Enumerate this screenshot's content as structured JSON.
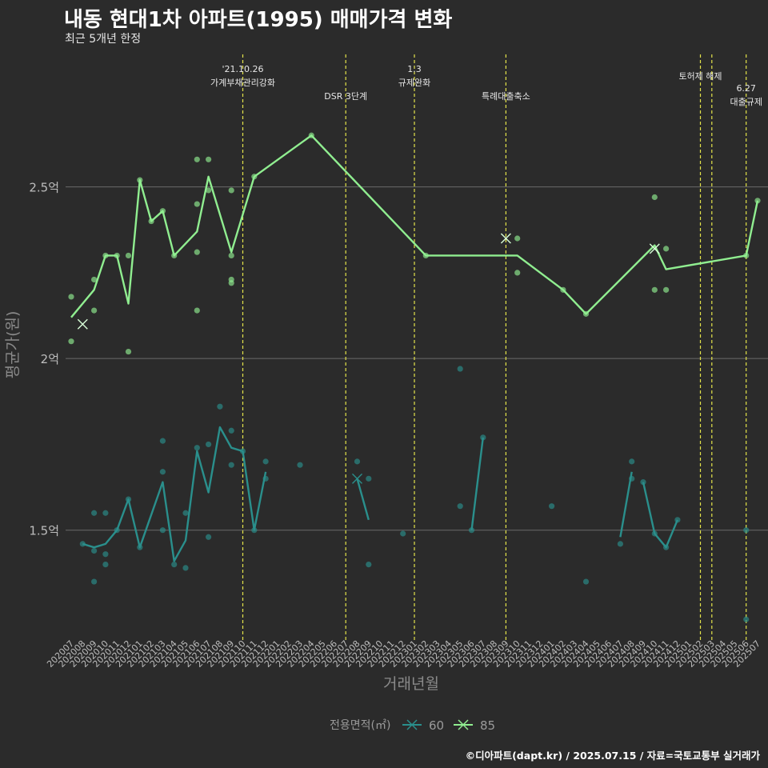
{
  "title": "내동 현대1차 아파트(1995) 매매가격 변화",
  "subtitle": "최근 5개년 한정",
  "caption": "©디아파트(dapt.kr) / 2025.07.15 / 자료=국토교통부 실거래가",
  "colors": {
    "background": "#2b2b2b",
    "grid": "#6b6b6b",
    "event_line": "#e4e44a",
    "series_60": "#2a8f8c",
    "series_85": "#90ee90",
    "text": "#bdbdbd"
  },
  "chart_data": {
    "type": "line",
    "xlabel": "거래년월",
    "ylabel": "평균가(원)",
    "ylim": [
      1.18,
      2.9
    ],
    "y_ticks": [
      {
        "value": 1.5,
        "label": "1.5억"
      },
      {
        "value": 2.0,
        "label": "2억"
      },
      {
        "value": 2.5,
        "label": "2.5억"
      }
    ],
    "categories": [
      "202007",
      "202008",
      "202009",
      "202010",
      "202011",
      "202012",
      "202101",
      "202102",
      "202103",
      "202104",
      "202105",
      "202106",
      "202107",
      "202108",
      "202109",
      "202110",
      "202111",
      "202112",
      "202201",
      "202202",
      "202203",
      "202204",
      "202205",
      "202206",
      "202207",
      "202208",
      "202209",
      "202210",
      "202211",
      "202212",
      "202301",
      "202302",
      "202303",
      "202304",
      "202305",
      "202306",
      "202307",
      "202308",
      "202309",
      "202310",
      "202311",
      "202312",
      "202401",
      "202402",
      "202403",
      "202404",
      "202405",
      "202406",
      "202407",
      "202408",
      "202409",
      "202410",
      "202411",
      "202412",
      "202501",
      "202502",
      "202503",
      "202504",
      "202505",
      "202506",
      "202507"
    ],
    "grid": true,
    "legend": {
      "title": "전용면적(㎡)",
      "position": "bottom",
      "items": [
        {
          "label": "60",
          "series": "60"
        },
        {
          "label": "85",
          "series": "85"
        }
      ]
    },
    "events": [
      {
        "month": "202110",
        "label": "'21.10.26\n가계부채관리강화",
        "row": 0
      },
      {
        "month": "202207",
        "label": "DSR 3단계",
        "row": 2
      },
      {
        "month": "202301",
        "label": "1.3\n규제완화",
        "row": 0
      },
      {
        "month": "202309",
        "label": "특례대출축소",
        "row": 2
      },
      {
        "month": "202502",
        "label": "토허제 해제",
        "row": 1
      },
      {
        "month": "202503",
        "label": "",
        "row": 1
      },
      {
        "month": "202506",
        "label": "6.27\n대출규제",
        "row": 1.5
      }
    ],
    "series": [
      {
        "name": "60",
        "line": [
          [
            [
              "202008",
              1.46
            ],
            [
              "202009",
              1.45
            ],
            [
              "202010",
              1.46
            ],
            [
              "202011",
              1.5
            ],
            [
              "202012",
              1.59
            ],
            [
              "202101",
              1.45
            ],
            [
              "202103",
              1.64
            ],
            [
              "202104",
              1.41
            ],
            [
              "202105",
              1.47
            ],
            [
              "202106",
              1.73
            ],
            [
              "202107",
              1.61
            ],
            [
              "202108",
              1.8
            ],
            [
              "202109",
              1.74
            ],
            [
              "202110",
              1.73
            ],
            [
              "202111",
              1.5
            ],
            [
              "202112",
              1.67
            ]
          ],
          [
            [
              "202208",
              1.65
            ],
            [
              "202209",
              1.53
            ]
          ],
          [
            [
              "202306",
              1.5
            ],
            [
              "202307",
              1.77
            ]
          ],
          [
            [
              "202407",
              1.48
            ],
            [
              "202408",
              1.67
            ]
          ],
          [
            [
              "202409",
              1.64
            ],
            [
              "202410",
              1.49
            ],
            [
              "202411",
              1.45
            ],
            [
              "202412",
              1.53
            ]
          ]
        ],
        "points": [
          [
            "202008",
            1.46
          ],
          [
            "202009",
            1.44
          ],
          [
            "202009",
            1.35
          ],
          [
            "202009",
            1.55
          ],
          [
            "202010",
            1.43
          ],
          [
            "202010",
            1.4
          ],
          [
            "202010",
            1.55
          ],
          [
            "202011",
            1.5
          ],
          [
            "202012",
            1.59
          ],
          [
            "202101",
            1.45
          ],
          [
            "202103",
            1.76
          ],
          [
            "202103",
            1.67
          ],
          [
            "202103",
            1.5
          ],
          [
            "202104",
            1.4
          ],
          [
            "202105",
            1.39
          ],
          [
            "202105",
            1.55
          ],
          [
            "202106",
            1.74
          ],
          [
            "202107",
            1.75
          ],
          [
            "202107",
            1.48
          ],
          [
            "202108",
            1.86
          ],
          [
            "202109",
            1.79
          ],
          [
            "202109",
            1.69
          ],
          [
            "202110",
            1.73
          ],
          [
            "202111",
            1.5
          ],
          [
            "202112",
            1.7
          ],
          [
            "202112",
            1.65
          ],
          [
            "202203",
            1.69
          ],
          [
            "202208",
            1.7
          ],
          [
            "202209",
            1.4
          ],
          [
            "202209",
            1.65
          ],
          [
            "202212",
            1.49
          ],
          [
            "202305",
            1.97
          ],
          [
            "202305",
            1.57
          ],
          [
            "202306",
            1.5
          ],
          [
            "202307",
            1.77
          ],
          [
            "202401",
            1.57
          ],
          [
            "202404",
            1.35
          ],
          [
            "202407",
            1.46
          ],
          [
            "202408",
            1.7
          ],
          [
            "202408",
            1.65
          ],
          [
            "202409",
            1.64
          ],
          [
            "202410",
            1.49
          ],
          [
            "202411",
            1.45
          ],
          [
            "202412",
            1.53
          ],
          [
            "202506",
            1.5
          ],
          [
            "202506",
            1.24
          ]
        ],
        "x_marks": [
          [
            "202208",
            1.65
          ]
        ]
      },
      {
        "name": "85",
        "line": [
          [
            [
              "202007",
              2.12
            ],
            [
              "202008",
              2.16
            ],
            [
              "202009",
              2.2
            ],
            [
              "202010",
              2.3
            ],
            [
              "202011",
              2.3
            ],
            [
              "202012",
              2.16
            ],
            [
              "202101",
              2.52
            ],
            [
              "202102",
              2.4
            ],
            [
              "202103",
              2.43
            ],
            [
              "202104",
              2.3
            ],
            [
              "202106",
              2.37
            ],
            [
              "202107",
              2.53
            ],
            [
              "202109",
              2.31
            ],
            [
              "202111",
              2.53
            ],
            [
              "202204",
              2.65
            ],
            [
              "202302",
              2.3
            ],
            [
              "202310",
              2.3
            ],
            [
              "202402",
              2.2
            ],
            [
              "202404",
              2.13
            ],
            [
              "202410",
              2.33
            ],
            [
              "202411",
              2.26
            ],
            [
              "202506",
              2.3
            ],
            [
              "202507",
              2.46
            ]
          ]
        ],
        "points": [
          [
            "202007",
            2.18
          ],
          [
            "202007",
            2.05
          ],
          [
            "202009",
            2.23
          ],
          [
            "202009",
            2.14
          ],
          [
            "202010",
            2.3
          ],
          [
            "202011",
            2.3
          ],
          [
            "202012",
            2.3
          ],
          [
            "202012",
            2.02
          ],
          [
            "202101",
            2.52
          ],
          [
            "202102",
            2.4
          ],
          [
            "202103",
            2.43
          ],
          [
            "202104",
            2.3
          ],
          [
            "202106",
            2.58
          ],
          [
            "202106",
            2.45
          ],
          [
            "202106",
            2.31
          ],
          [
            "202106",
            2.14
          ],
          [
            "202107",
            2.58
          ],
          [
            "202107",
            2.49
          ],
          [
            "202109",
            2.49
          ],
          [
            "202109",
            2.3
          ],
          [
            "202109",
            2.23
          ],
          [
            "202109",
            2.22
          ],
          [
            "202111",
            2.53
          ],
          [
            "202204",
            2.65
          ],
          [
            "202302",
            2.3
          ],
          [
            "202310",
            2.35
          ],
          [
            "202310",
            2.25
          ],
          [
            "202402",
            2.2
          ],
          [
            "202404",
            2.13
          ],
          [
            "202410",
            2.47
          ],
          [
            "202410",
            2.2
          ],
          [
            "202411",
            2.32
          ],
          [
            "202411",
            2.2
          ],
          [
            "202506",
            2.3
          ],
          [
            "202507",
            2.46
          ]
        ],
        "x_marks": [
          [
            "202008",
            2.1
          ],
          [
            "202309",
            2.35
          ],
          [
            "202410",
            2.32
          ]
        ]
      }
    ]
  }
}
